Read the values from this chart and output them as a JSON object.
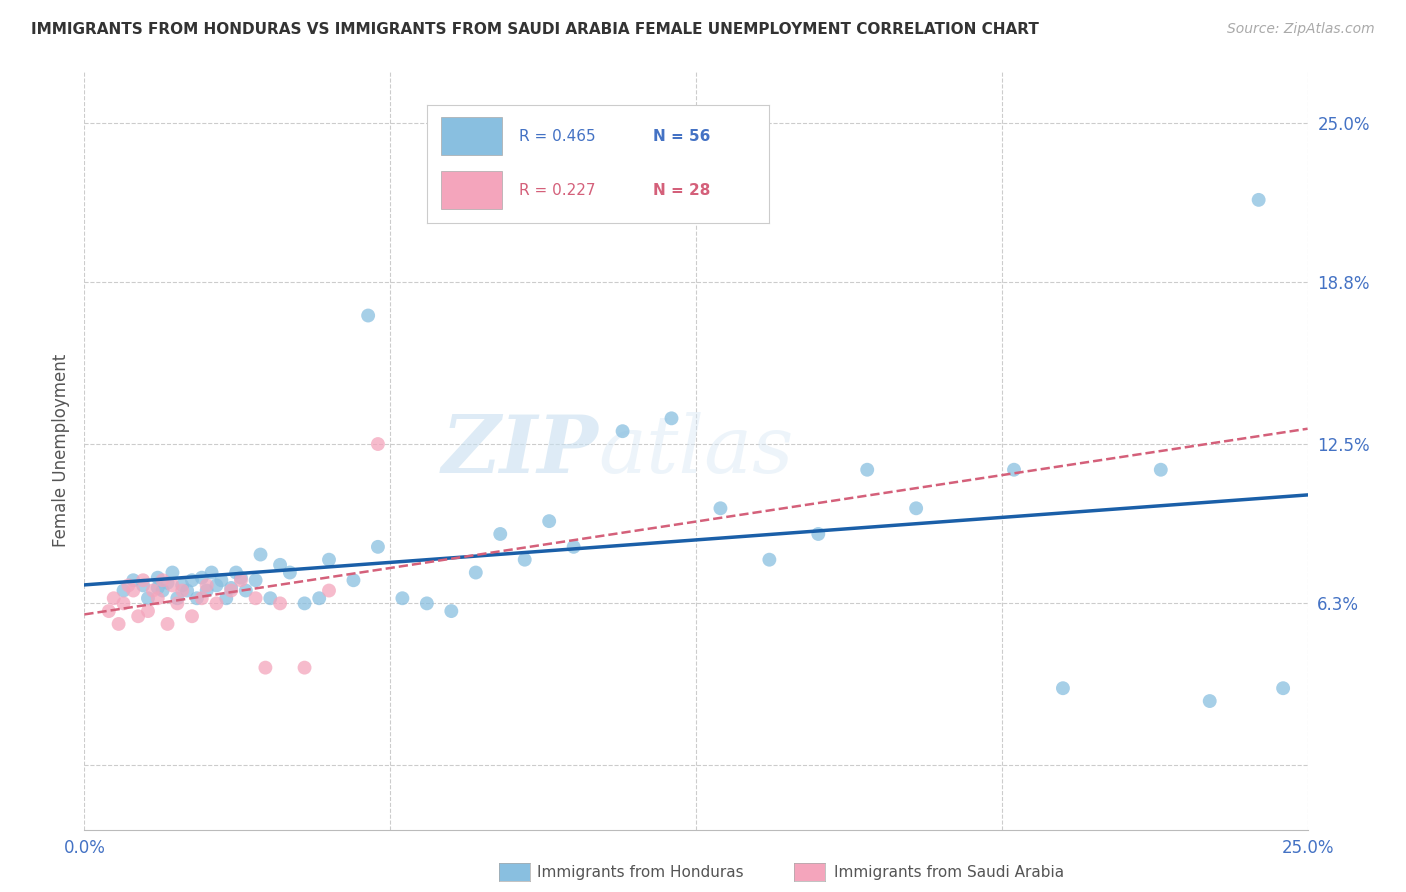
{
  "title": "IMMIGRANTS FROM HONDURAS VS IMMIGRANTS FROM SAUDI ARABIA FEMALE UNEMPLOYMENT CORRELATION CHART",
  "source": "Source: ZipAtlas.com",
  "ylabel": "Female Unemployment",
  "yticks": [
    0.0,
    0.063,
    0.125,
    0.188,
    0.25
  ],
  "ytick_labels": [
    "",
    "6.3%",
    "12.5%",
    "18.8%",
    "25.0%"
  ],
  "xlim": [
    0.0,
    0.25
  ],
  "ylim": [
    -0.025,
    0.27
  ],
  "legend_r1": "R = 0.465",
  "legend_n1": "N = 56",
  "legend_r2": "R = 0.227",
  "legend_n2": "N = 28",
  "color_honduras": "#89bfe0",
  "color_saudi": "#f4a5bc",
  "color_trend_honduras": "#1a5fa8",
  "color_trend_saudi": "#d4607a",
  "watermark_zip": "ZIP",
  "watermark_atlas": "atlas",
  "honduras_x": [
    0.008,
    0.01,
    0.012,
    0.013,
    0.015,
    0.015,
    0.016,
    0.017,
    0.018,
    0.019,
    0.02,
    0.021,
    0.022,
    0.023,
    0.024,
    0.025,
    0.026,
    0.027,
    0.028,
    0.029,
    0.03,
    0.031,
    0.032,
    0.033,
    0.035,
    0.036,
    0.038,
    0.04,
    0.042,
    0.045,
    0.048,
    0.05,
    0.055,
    0.058,
    0.06,
    0.065,
    0.07,
    0.075,
    0.08,
    0.085,
    0.09,
    0.095,
    0.1,
    0.11,
    0.12,
    0.13,
    0.14,
    0.15,
    0.16,
    0.17,
    0.19,
    0.2,
    0.22,
    0.23,
    0.24,
    0.245
  ],
  "honduras_y": [
    0.068,
    0.072,
    0.07,
    0.065,
    0.069,
    0.073,
    0.068,
    0.071,
    0.075,
    0.065,
    0.07,
    0.068,
    0.072,
    0.065,
    0.073,
    0.068,
    0.075,
    0.07,
    0.072,
    0.065,
    0.069,
    0.075,
    0.073,
    0.068,
    0.072,
    0.082,
    0.065,
    0.078,
    0.075,
    0.063,
    0.065,
    0.08,
    0.072,
    0.175,
    0.085,
    0.065,
    0.063,
    0.06,
    0.075,
    0.09,
    0.08,
    0.095,
    0.085,
    0.13,
    0.135,
    0.1,
    0.08,
    0.09,
    0.115,
    0.1,
    0.115,
    0.03,
    0.115,
    0.025,
    0.22,
    0.03
  ],
  "saudi_x": [
    0.005,
    0.006,
    0.007,
    0.008,
    0.009,
    0.01,
    0.011,
    0.012,
    0.013,
    0.014,
    0.015,
    0.016,
    0.017,
    0.018,
    0.019,
    0.02,
    0.022,
    0.024,
    0.025,
    0.027,
    0.03,
    0.032,
    0.035,
    0.037,
    0.04,
    0.045,
    0.05,
    0.06
  ],
  "saudi_y": [
    0.06,
    0.065,
    0.055,
    0.063,
    0.07,
    0.068,
    0.058,
    0.072,
    0.06,
    0.068,
    0.065,
    0.072,
    0.055,
    0.07,
    0.063,
    0.068,
    0.058,
    0.065,
    0.07,
    0.063,
    0.068,
    0.072,
    0.065,
    0.038,
    0.063,
    0.038,
    0.068,
    0.125
  ]
}
